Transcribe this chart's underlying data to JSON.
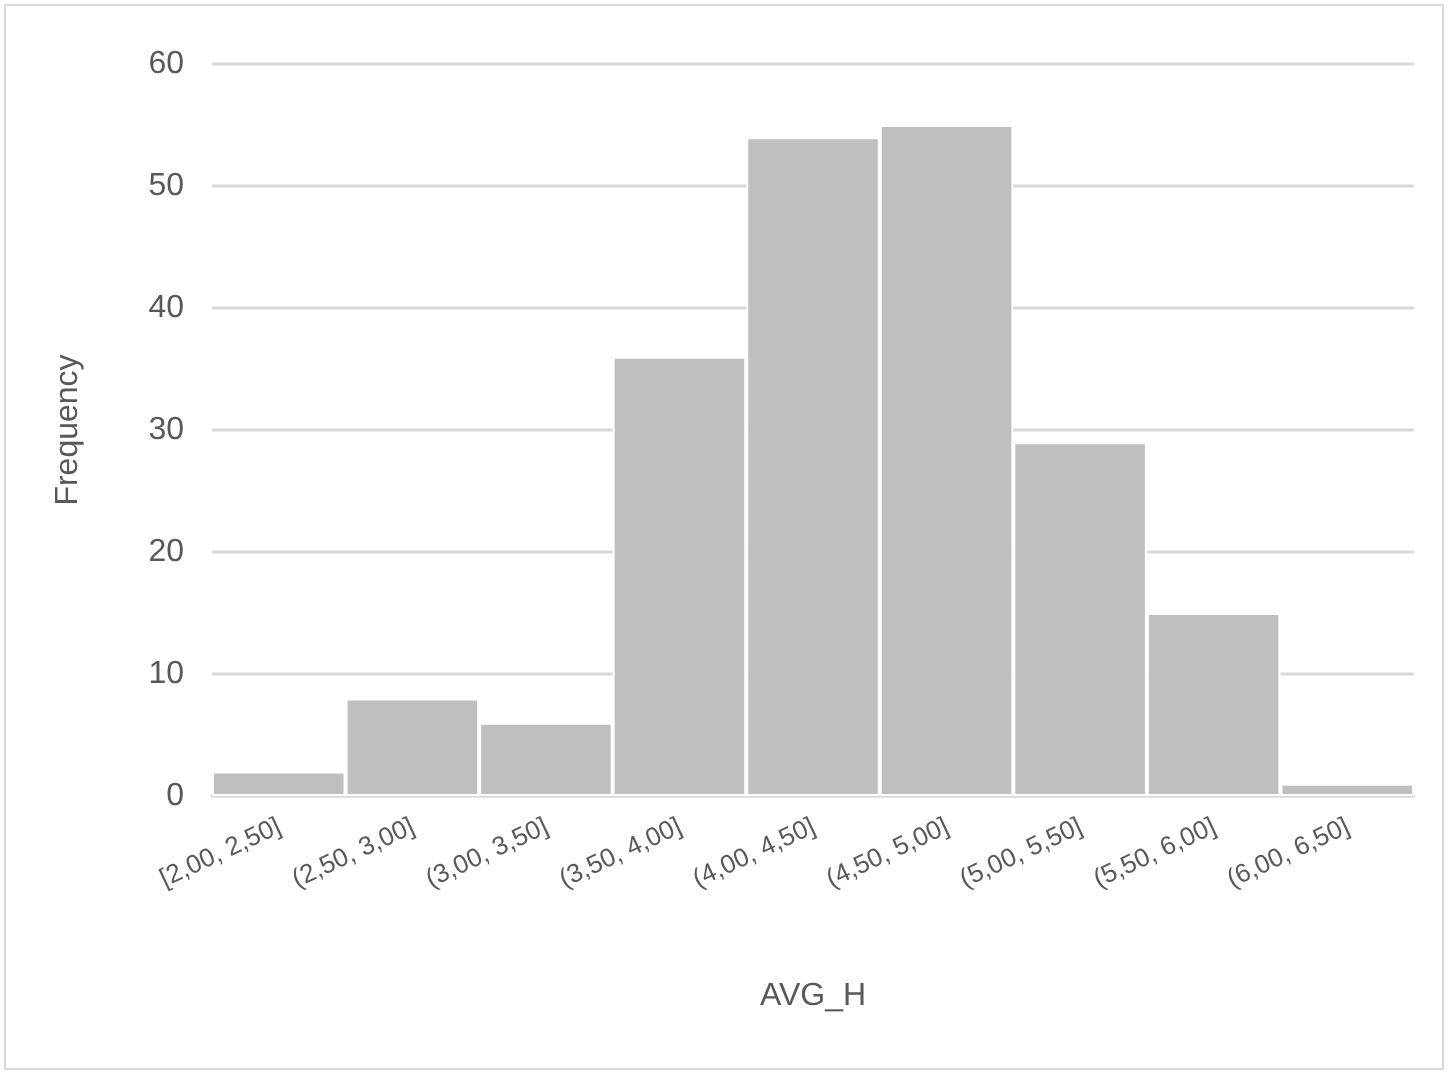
{
  "chart_data": {
    "type": "bar",
    "xlabel": "AVG_H",
    "ylabel": "Frequency",
    "categories": [
      "[2,00, 2,50]",
      "(2,50, 3,00]",
      "(3,00, 3,50]",
      "(3,50, 4,00]",
      "(4,00, 4,50]",
      "(4,50, 5,00]",
      "(5,00, 5,50]",
      "(5,50, 6,00]",
      "(6,00, 6,50]"
    ],
    "values": [
      2,
      8,
      6,
      36,
      54,
      55,
      29,
      15,
      1
    ],
    "color": "#bfbfbf",
    "ylim": [
      0,
      60
    ],
    "yticks": [
      0,
      10,
      20,
      30,
      40,
      50,
      60
    ],
    "grid": "y"
  }
}
